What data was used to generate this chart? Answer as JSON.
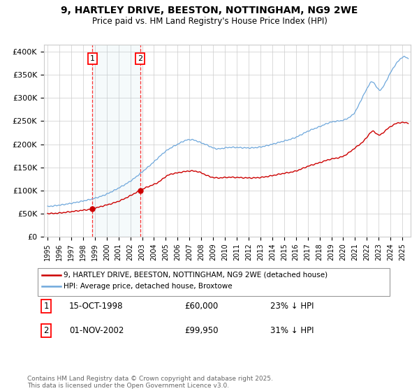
{
  "title": "9, HARTLEY DRIVE, BEESTON, NOTTINGHAM, NG9 2WE",
  "subtitle": "Price paid vs. HM Land Registry's House Price Index (HPI)",
  "ylabel_ticks": [
    "£0",
    "£50K",
    "£100K",
    "£150K",
    "£200K",
    "£250K",
    "£300K",
    "£350K",
    "£400K"
  ],
  "ytick_values": [
    0,
    50000,
    100000,
    150000,
    200000,
    250000,
    300000,
    350000,
    400000
  ],
  "ylim": [
    0,
    415000
  ],
  "xlim_start": 1994.7,
  "xlim_end": 2025.7,
  "hpi_color": "#6fa8dc",
  "price_color": "#cc0000",
  "marker1_date": 1998.79,
  "marker2_date": 2002.83,
  "marker1_price": 60000,
  "marker2_price": 99950,
  "sale1_label": "15-OCT-1998",
  "sale1_price": "£60,000",
  "sale1_pct": "23% ↓ HPI",
  "sale2_label": "01-NOV-2002",
  "sale2_price": "£99,950",
  "sale2_pct": "31% ↓ HPI",
  "legend_line1": "9, HARTLEY DRIVE, BEESTON, NOTTINGHAM, NG9 2WE (detached house)",
  "legend_line2": "HPI: Average price, detached house, Broxtowe",
  "footer": "Contains HM Land Registry data © Crown copyright and database right 2025.\nThis data is licensed under the Open Government Licence v3.0.",
  "background_color": "#ffffff",
  "grid_color": "#cccccc"
}
